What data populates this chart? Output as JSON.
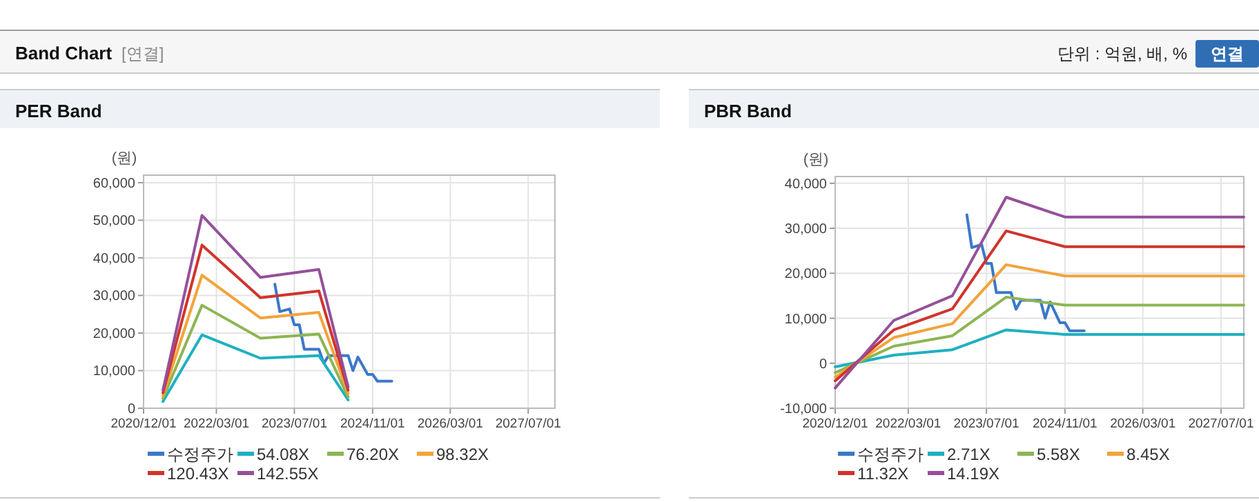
{
  "chart_data": [
    {
      "type": "other",
      "title": "Band Chart",
      "annotations": [
        "[연결]",
        "단위 : 억원, 배, %",
        "연결"
      ]
    },
    {
      "type": "line",
      "title": "PER Band",
      "ylabel": "(원)",
      "xlim": [
        "2020-12-01",
        "2027-12-15"
      ],
      "ylim": [
        0,
        62000
      ],
      "xticks": [
        {
          "value": "2020-12-01",
          "label": "2020/12/01"
        },
        {
          "value": "2022-03-01",
          "label": "2022/03/01"
        },
        {
          "value": "2023-07-01",
          "label": "2023/07/01"
        },
        {
          "value": "2024-11-01",
          "label": "2024/11/01"
        },
        {
          "value": "2026-03-01",
          "label": "2026/03/01"
        },
        {
          "value": "2027-07-01",
          "label": "2027/07/01"
        }
      ],
      "yticks": [
        0,
        {
          "value": 10000,
          "label": "10,000"
        },
        {
          "value": 20000,
          "label": "20,000"
        },
        {
          "value": 30000,
          "label": "30,000"
        },
        {
          "value": 40000,
          "label": "40,000"
        },
        {
          "value": 50000,
          "label": "50,000"
        },
        {
          "value": 60000,
          "label": "60,000"
        }
      ],
      "grid": true,
      "legend": "bottom",
      "marker": "none",
      "line_style": "solid",
      "series": [
        {
          "name": "수정주가",
          "color": "#3a78c9",
          "x": [
            "2023-03-01",
            "2023-04-01",
            "2023-06-01",
            "2023-07-01",
            "2023-08-01",
            "2023-09-01",
            "2023-12-01",
            "2024-01-01",
            "2024-02-01",
            "2024-06-01",
            "2024-07-01",
            "2024-08-01",
            "2024-10-01",
            "2024-11-01",
            "2024-12-01",
            "2025-03-01"
          ],
          "values": [
            33000,
            25700,
            26400,
            22200,
            22200,
            15700,
            15700,
            12000,
            14000,
            14000,
            10000,
            13600,
            9000,
            9000,
            7200,
            7200
          ]
        },
        {
          "name": "54.08X",
          "color": "#1fb0c0",
          "x": [
            "2021-04-01",
            "2021-12-01",
            "2022-12-01",
            "2023-12-01",
            "2024-06-01"
          ],
          "values": [
            1800,
            19500,
            13300,
            14000,
            2200
          ]
        },
        {
          "name": "76.20X",
          "color": "#8db553",
          "x": [
            "2021-04-01",
            "2021-12-01",
            "2022-12-01",
            "2023-12-01",
            "2024-06-01"
          ],
          "values": [
            2600,
            27400,
            18600,
            19700,
            3000
          ]
        },
        {
          "name": "98.32X",
          "color": "#f2a33a",
          "x": [
            "2021-04-01",
            "2021-12-01",
            "2022-12-01",
            "2023-12-01",
            "2024-06-01"
          ],
          "values": [
            3300,
            35400,
            24000,
            25500,
            3900
          ]
        },
        {
          "name": "120.43X",
          "color": "#d0342c",
          "x": [
            "2021-04-01",
            "2021-12-01",
            "2022-12-01",
            "2023-12-01",
            "2024-06-01"
          ],
          "values": [
            4100,
            43400,
            29400,
            31200,
            4800
          ]
        },
        {
          "name": "142.55X",
          "color": "#94509a",
          "x": [
            "2021-04-01",
            "2021-12-01",
            "2022-12-01",
            "2023-12-01",
            "2024-06-01"
          ],
          "values": [
            4800,
            51300,
            34800,
            36900,
            5700
          ]
        }
      ]
    },
    {
      "type": "line",
      "title": "PBR Band",
      "ylabel": "(원)",
      "xlim": [
        "2020-12-01",
        "2027-11-20"
      ],
      "ylim": [
        -10000,
        41500
      ],
      "xticks": [
        {
          "value": "2020-12-01",
          "label": "2020/12/01"
        },
        {
          "value": "2022-03-01",
          "label": "2022/03/01"
        },
        {
          "value": "2023-07-01",
          "label": "2023/07/01"
        },
        {
          "value": "2024-11-01",
          "label": "2024/11/01"
        },
        {
          "value": "2026-03-01",
          "label": "2026/03/01"
        },
        {
          "value": "2027-07-01",
          "label": "2027/07/01"
        }
      ],
      "yticks": [
        {
          "value": -10000,
          "label": "-10,000"
        },
        0,
        {
          "value": 10000,
          "label": "10,000"
        },
        {
          "value": 20000,
          "label": "20,000"
        },
        {
          "value": 30000,
          "label": "30,000"
        },
        {
          "value": 40000,
          "label": "40,000"
        }
      ],
      "grid": true,
      "legend": "bottom",
      "marker": "none",
      "line_style": "solid",
      "series": [
        {
          "name": "수정주가",
          "color": "#3a78c9",
          "x": [
            "2023-03-01",
            "2023-04-01",
            "2023-06-01",
            "2023-07-01",
            "2023-08-01",
            "2023-09-01",
            "2023-12-01",
            "2024-01-01",
            "2024-02-01",
            "2024-06-01",
            "2024-07-01",
            "2024-08-01",
            "2024-10-01",
            "2024-11-01",
            "2024-12-01",
            "2025-03-01"
          ],
          "values": [
            33000,
            25700,
            26400,
            22200,
            22200,
            15700,
            15700,
            12000,
            14000,
            14000,
            10000,
            13600,
            9000,
            9000,
            7200,
            7200
          ]
        },
        {
          "name": "2.71X",
          "color": "#1fb0c0",
          "x": [
            "2020-12-01",
            "2021-12-01",
            "2022-12-01",
            "2023-11-01",
            "2024-11-01",
            "2027-11-20"
          ],
          "values": [
            -800,
            1800,
            3000,
            7400,
            6400,
            6400
          ]
        },
        {
          "name": "5.58X",
          "color": "#8db553",
          "x": [
            "2020-12-01",
            "2021-12-01",
            "2022-12-01",
            "2023-11-01",
            "2024-11-01",
            "2027-11-20"
          ],
          "values": [
            -2100,
            3800,
            6100,
            14700,
            12900,
            12900
          ]
        },
        {
          "name": "8.45X",
          "color": "#f2a33a",
          "x": [
            "2020-12-01",
            "2021-12-01",
            "2022-12-01",
            "2023-11-01",
            "2024-11-01",
            "2027-11-20"
          ],
          "values": [
            -3100,
            5700,
            8800,
            21900,
            19400,
            19400
          ]
        },
        {
          "name": "11.32X",
          "color": "#d0342c",
          "x": [
            "2020-12-01",
            "2021-12-01",
            "2022-12-01",
            "2023-11-01",
            "2024-11-01",
            "2027-11-20"
          ],
          "values": [
            -3900,
            7400,
            12100,
            29400,
            25900,
            25900
          ]
        },
        {
          "name": "14.19X",
          "color": "#94509a",
          "x": [
            "2020-12-01",
            "2021-12-01",
            "2022-12-01",
            "2023-11-01",
            "2024-11-01",
            "2027-11-20"
          ],
          "values": [
            -5500,
            9500,
            15000,
            36900,
            32500,
            32500
          ]
        }
      ]
    }
  ]
}
